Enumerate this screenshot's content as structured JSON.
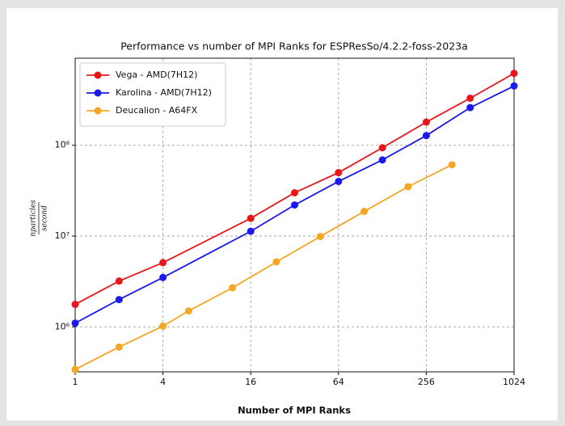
{
  "chart_data": {
    "type": "line",
    "title": "Performance vs number of MPI Ranks for ESPResSo/4.2.2-foss-2023a",
    "xlabel": "Number of MPI Ranks",
    "ylabel": {
      "numerator": "nparticles",
      "denominator": "second"
    },
    "xscale": "log",
    "yscale": "log",
    "grid": true,
    "legend": "upper left",
    "xlim": [
      1,
      1024
    ],
    "xticks": [
      1,
      4,
      16,
      64,
      256,
      1024
    ],
    "ylim": [
      320000,
      910000000
    ],
    "yticks": [
      {
        "value": 1000000,
        "label": "10⁶"
      },
      {
        "value": 10000000,
        "label": "10⁷"
      },
      {
        "value": 100000000,
        "label": "10⁸"
      }
    ],
    "series": [
      {
        "name": "Vega - AMD(7H12)",
        "color": "#e8161b",
        "x": [
          1,
          2,
          4,
          16,
          32,
          64,
          128,
          256,
          512,
          1024
        ],
        "values": [
          1770000,
          3200000,
          5100000,
          15700000,
          30000000,
          50000000,
          94000000,
          180000000,
          330000000,
          620000000
        ]
      },
      {
        "name": "Karolina - AMD(7H12)",
        "color": "#1a1aeb",
        "x": [
          1,
          2,
          4,
          16,
          32,
          64,
          128,
          256,
          512,
          1024
        ],
        "values": [
          1100000,
          2000000,
          3500000,
          11300000,
          22000000,
          40000000,
          69000000,
          128000000,
          260000000,
          450000000
        ]
      },
      {
        "name": "Deucalion - A64FX",
        "color": "#f5a623",
        "x": [
          1,
          2,
          4,
          6,
          12,
          24,
          48,
          96,
          192,
          384
        ],
        "values": [
          340000,
          600000,
          1020000,
          1500000,
          2700000,
          5200000,
          9900000,
          18700000,
          35000000,
          61000000
        ]
      }
    ]
  }
}
